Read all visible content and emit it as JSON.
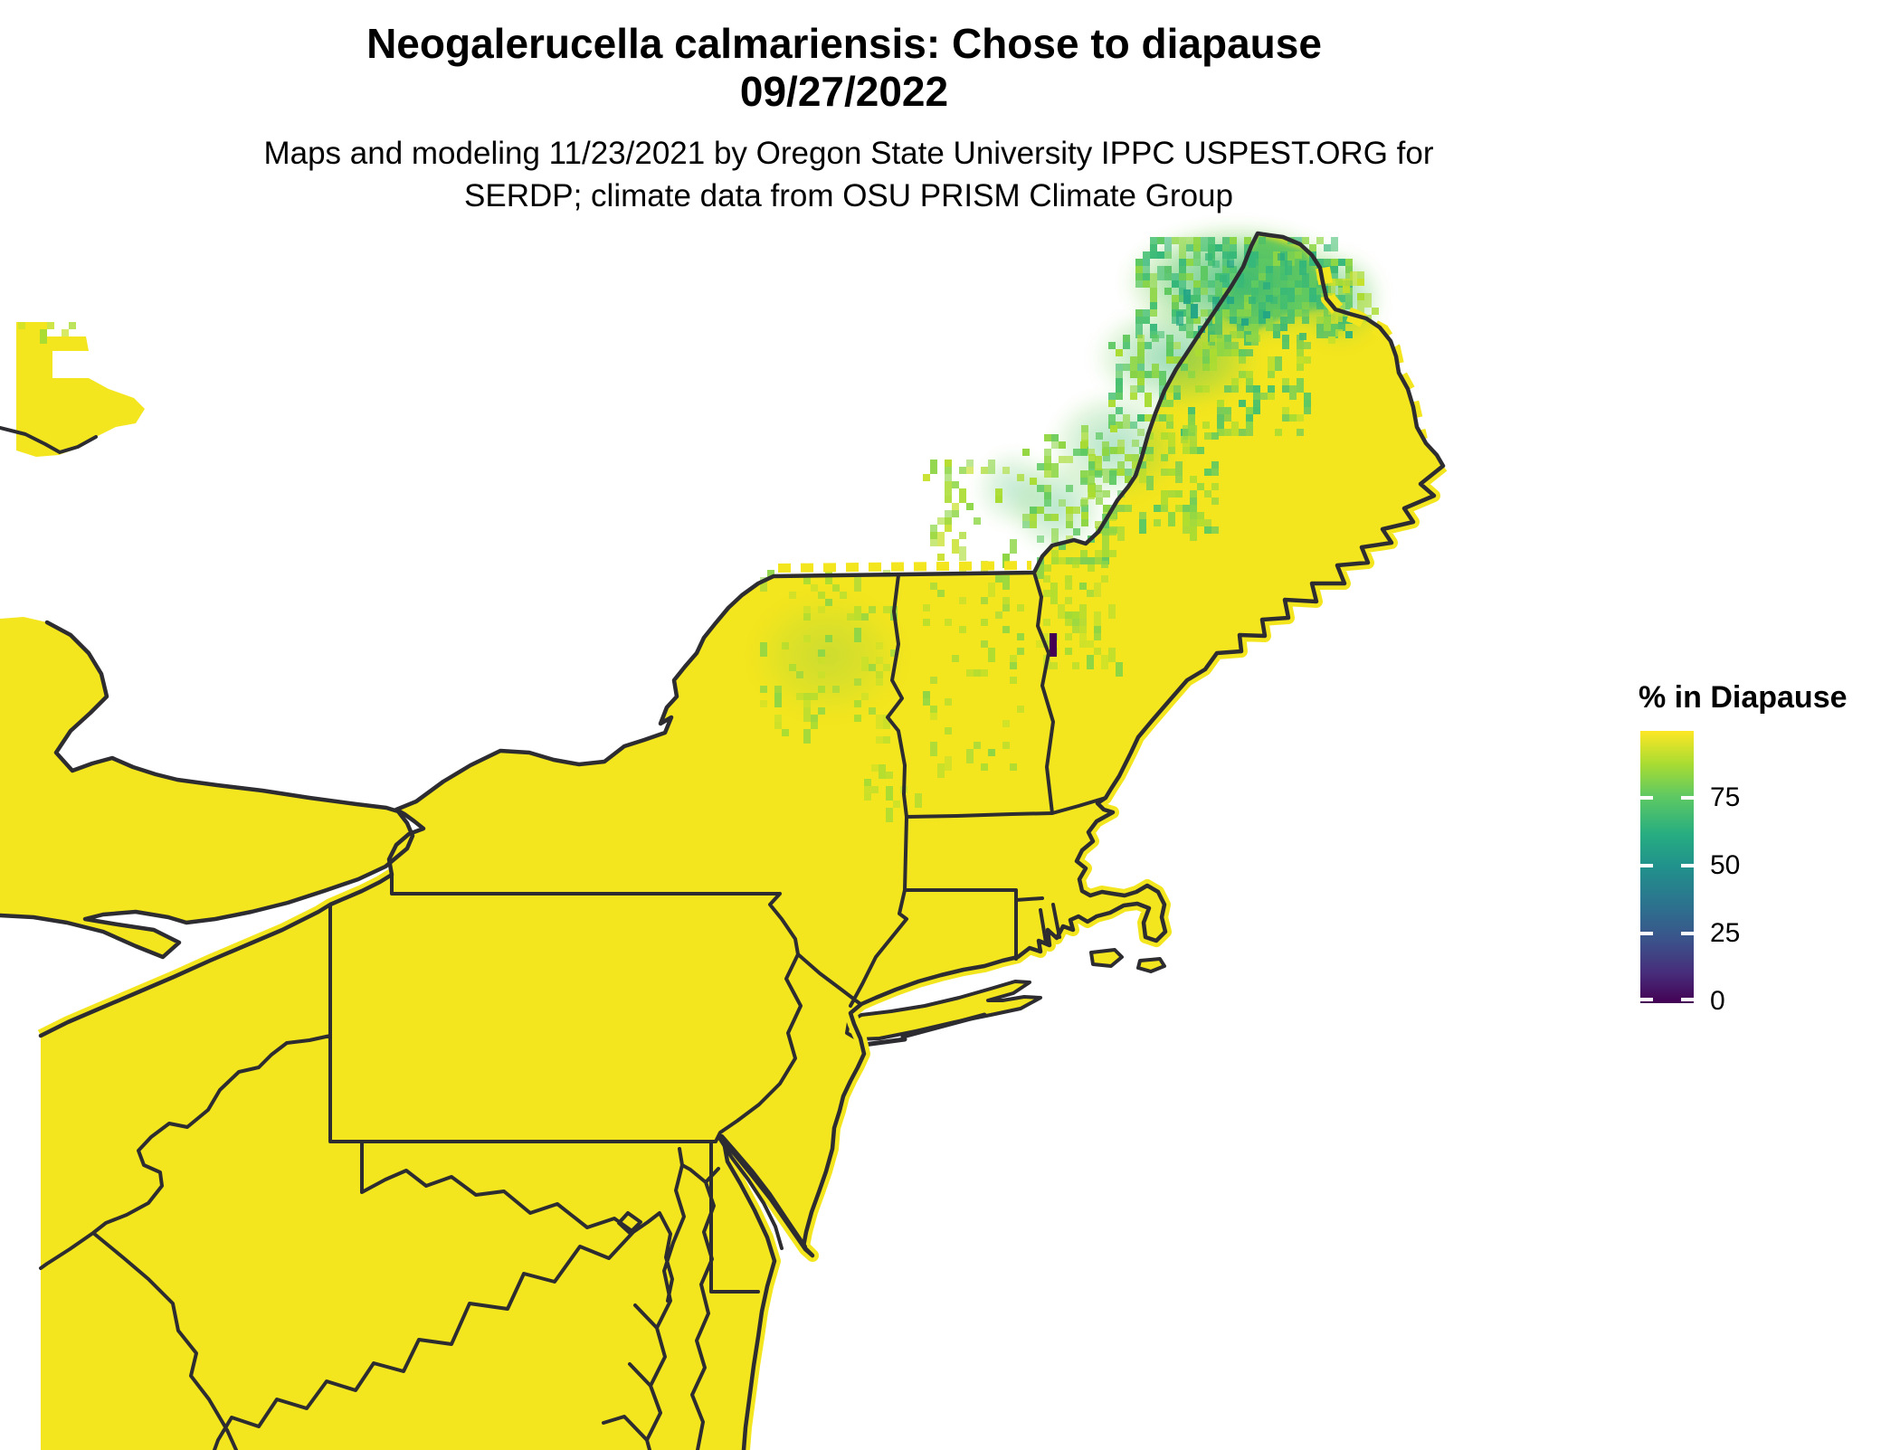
{
  "header": {
    "title_line1": "Neogalerucella calmariensis: Chose to diapause",
    "title_line2": "09/27/2022",
    "subtitle_line1": "Maps and modeling 11/23/2021 by Oregon State University IPPC USPEST.ORG for",
    "subtitle_line2": "SERDP; climate data from OSU PRISM Climate Group"
  },
  "legend": {
    "title": "% in Diapause",
    "tick_labels": [
      "75",
      "50",
      "25",
      "0"
    ],
    "tick_values": [
      75,
      50,
      25,
      0
    ],
    "scale_min": 0,
    "scale_max": 100,
    "colorbar_stops": [
      "#440154",
      "#472d7b",
      "#3b528b",
      "#2c728e",
      "#21918c",
      "#27ad81",
      "#5ec962",
      "#aadc32",
      "#fde725"
    ]
  },
  "map": {
    "region": "Northeastern United States and adjacent southern Canada",
    "fill_color_high": "#f3e51e",
    "border_color": "#2c2c31",
    "water_color": "#ffffff",
    "visible_areas": [
      "Maine",
      "New Hampshire",
      "Vermont",
      "Massachusetts",
      "Rhode Island",
      "Connecticut",
      "New York",
      "New Jersey",
      "Pennsylvania",
      "Delaware",
      "Maryland",
      "West Virginia",
      "Virginia",
      "Ohio",
      "Kentucky",
      "Ontario (Canada)",
      "Lake Ontario",
      "Lake Erie",
      "Long Island",
      "Cape Cod",
      "Chesapeake Bay",
      "Delaware Bay",
      "Atlantic Ocean"
    ],
    "depicted_values": {
      "most_of_region_percent": "95-100",
      "northern_maine_percent": "70-90",
      "northern_new_hampshire_percent": "80-95",
      "vermont_green_mountains_percent": "85-95",
      "adirondacks_new_york_percent": "90-97",
      "isolated_low_cell_new_hampshire_percent": "0-5"
    },
    "speckle_colors": [
      "#c8e02a",
      "#aadc32",
      "#8ed645",
      "#5ec962",
      "#44bf70",
      "#35b779",
      "#21a585"
    ],
    "anomaly_color": "#440154"
  }
}
